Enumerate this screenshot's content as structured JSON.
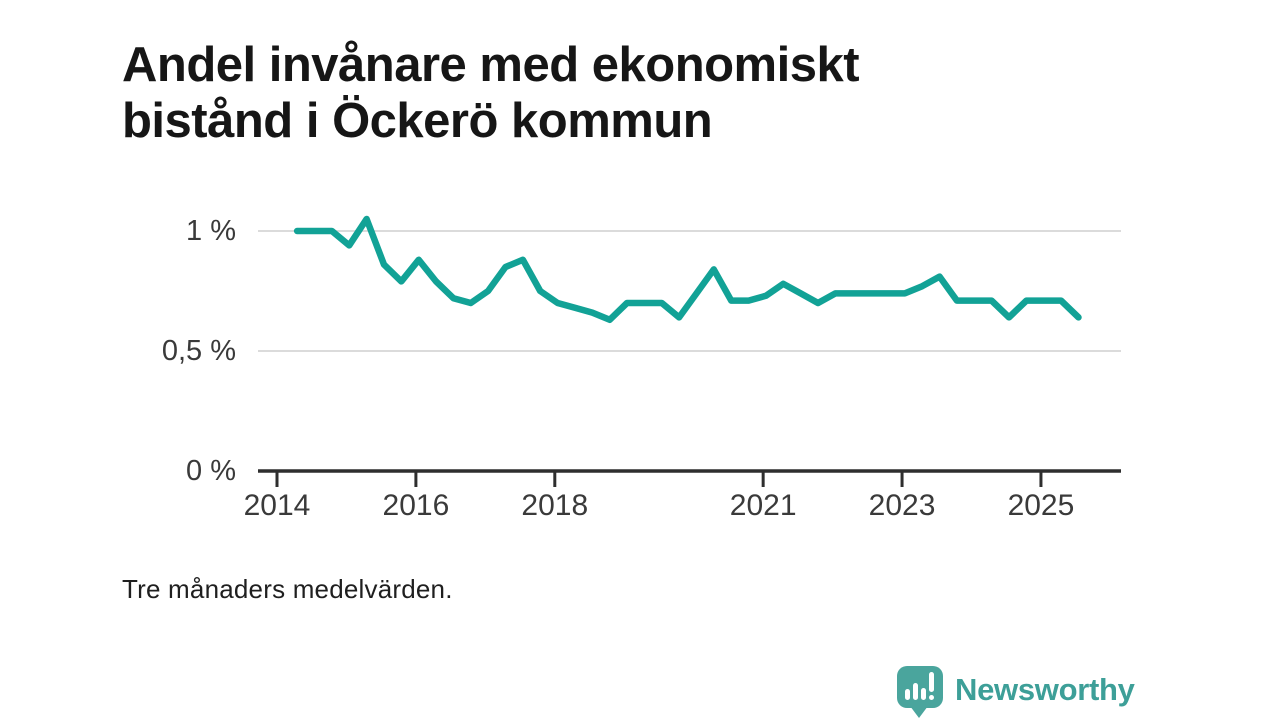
{
  "page": {
    "title_lines": [
      "Andel invånare med ekonomiskt",
      "bistånd i Öckerö kommun"
    ],
    "caption": "Tre månaders medelvärden."
  },
  "branding": {
    "name": "Newsworthy",
    "logo_icon": "speech-bubble-with-bar-chart-and-exclamation"
  },
  "colors": {
    "line_teal": "#12a296",
    "logo_teal": "#4aa59d",
    "logo_text_teal": "#3d9f98",
    "axis": "#2e2e2e",
    "gridline": "#dbdbdb",
    "title_text": "#161616",
    "axis_label_text": "#3a3a3a"
  },
  "chart_data": {
    "type": "line",
    "title": "Andel invånare med ekonomiskt bistånd i Öckerö kommun",
    "note": "Tre månaders medelvärden.",
    "series_name": "Andel invånare med ekonomiskt bistånd",
    "unit": "%",
    "x_unit": "year (quarterly three-month averages)",
    "line_color": "#12a296",
    "grid": "horizontal-only",
    "legend": "none",
    "xlim": [
      2013.73,
      2026.15
    ],
    "ylim": [
      0,
      1.12
    ],
    "x": [
      2014.29,
      2014.54,
      2014.79,
      2015.04,
      2015.29,
      2015.54,
      2015.79,
      2016.04,
      2016.29,
      2016.54,
      2016.79,
      2017.04,
      2017.29,
      2017.54,
      2017.79,
      2018.04,
      2018.29,
      2018.54,
      2018.79,
      2019.04,
      2019.29,
      2019.54,
      2019.79,
      2020.04,
      2020.29,
      2020.54,
      2020.79,
      2021.04,
      2021.29,
      2021.54,
      2021.79,
      2022.04,
      2022.29,
      2022.54,
      2022.79,
      2023.04,
      2023.29,
      2023.54,
      2023.79,
      2024.04,
      2024.29,
      2024.54,
      2024.79,
      2025.04,
      2025.29,
      2025.54
    ],
    "values": [
      1.0,
      1.0,
      1.0,
      0.94,
      1.05,
      0.86,
      0.79,
      0.88,
      0.79,
      0.72,
      0.7,
      0.75,
      0.85,
      0.88,
      0.75,
      0.7,
      0.68,
      0.66,
      0.63,
      0.7,
      0.7,
      0.7,
      0.64,
      0.74,
      0.84,
      0.71,
      0.71,
      0.73,
      0.78,
      0.74,
      0.7,
      0.74,
      0.74,
      0.74,
      0.74,
      0.74,
      0.77,
      0.81,
      0.71,
      0.71,
      0.71,
      0.64,
      0.71,
      0.71,
      0.71,
      0.64
    ],
    "yticks": [
      {
        "value": 1,
        "label": "1 %"
      },
      {
        "value": 0.5,
        "label": "0,5 %"
      },
      {
        "value": 0,
        "label": "0 %"
      }
    ],
    "xticks": [
      {
        "value": 2014,
        "label": "2014"
      },
      {
        "value": 2016,
        "label": "2016"
      },
      {
        "value": 2018,
        "label": "2018"
      },
      {
        "value": 2021,
        "label": "2021"
      },
      {
        "value": 2023,
        "label": "2023"
      },
      {
        "value": 2025,
        "label": "2025"
      }
    ]
  }
}
